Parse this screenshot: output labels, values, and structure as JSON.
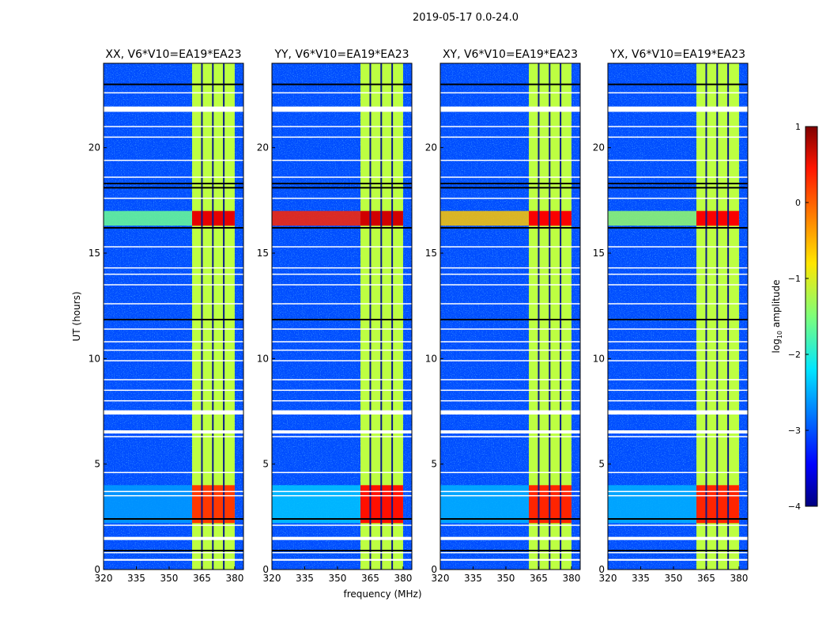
{
  "chart_data": {
    "type": "heatmap",
    "title": "2019-05-17 0.0-24.0",
    "xlabel": "frequency (MHz)",
    "ylabel": "UT (hours)",
    "xlim": [
      320,
      384
    ],
    "ylim": [
      0,
      24
    ],
    "xticks": [
      320,
      335,
      350,
      365,
      380
    ],
    "yticks": [
      0,
      5,
      10,
      15,
      20
    ],
    "colorbar": {
      "label_main": "log",
      "label_sub": "10",
      "label_rest": " amplitude",
      "range": [
        -4,
        1
      ],
      "ticks": [
        "1",
        "0",
        "−1",
        "−2",
        "−3",
        "−4"
      ],
      "tick_values": [
        1,
        0,
        -1,
        -2,
        -3,
        -4
      ],
      "colormap": "jet"
    },
    "background_level": -3.0,
    "band": {
      "freq_range": [
        360.5,
        380
      ],
      "level": -1.2,
      "channel_gaps_mhz": [
        365,
        370,
        375
      ]
    },
    "flagged_rows_hours": [
      [
        21.7,
        21.95
      ],
      [
        7.35,
        7.55
      ],
      [
        6.45,
        6.6
      ],
      [
        1.4,
        1.55
      ],
      [
        0.42,
        0.5
      ]
    ],
    "thin_flagged_hours": [
      22.6,
      21.0,
      20.5,
      19.4,
      18.6,
      17.6,
      15.3,
      14.3,
      14.0,
      13.5,
      12.6,
      11.4,
      10.8,
      10.4,
      9.9,
      9.0,
      8.5,
      8.0,
      6.3,
      4.6,
      3.7,
      3.5,
      2.1,
      0.8
    ],
    "dark_rows_hours": [
      23.0,
      18.3,
      18.1,
      16.2,
      11.85,
      2.4,
      0.9
    ],
    "panels": [
      {
        "title": "XX, V6*V10=EA19*EA23",
        "rfi_rows": [
          {
            "t": [
              16.3,
              17.0
            ],
            "band_level": 0.5,
            "bg_level": -1.6
          },
          {
            "t": [
              2.2,
              4.0
            ],
            "band_level": 0.1,
            "bg_level": -2.6
          }
        ]
      },
      {
        "title": "YY, V6*V10=EA19*EA23",
        "rfi_rows": [
          {
            "t": [
              16.3,
              17.0
            ],
            "band_level": 0.6,
            "bg_level": 0.2
          },
          {
            "t": [
              2.2,
              4.0
            ],
            "band_level": 0.3,
            "bg_level": -2.4
          }
        ]
      },
      {
        "title": "XY, V6*V10=EA19*EA23",
        "rfi_rows": [
          {
            "t": [
              16.3,
              17.0
            ],
            "band_level": 0.4,
            "bg_level": -0.6
          },
          {
            "t": [
              2.2,
              4.0
            ],
            "band_level": 0.2,
            "bg_level": -2.5
          }
        ]
      },
      {
        "title": "YX, V6*V10=EA19*EA23",
        "rfi_rows": [
          {
            "t": [
              16.3,
              17.0
            ],
            "band_level": 0.4,
            "bg_level": -1.4
          },
          {
            "t": [
              2.2,
              4.0
            ],
            "band_level": 0.2,
            "bg_level": -2.5
          }
        ]
      }
    ]
  }
}
